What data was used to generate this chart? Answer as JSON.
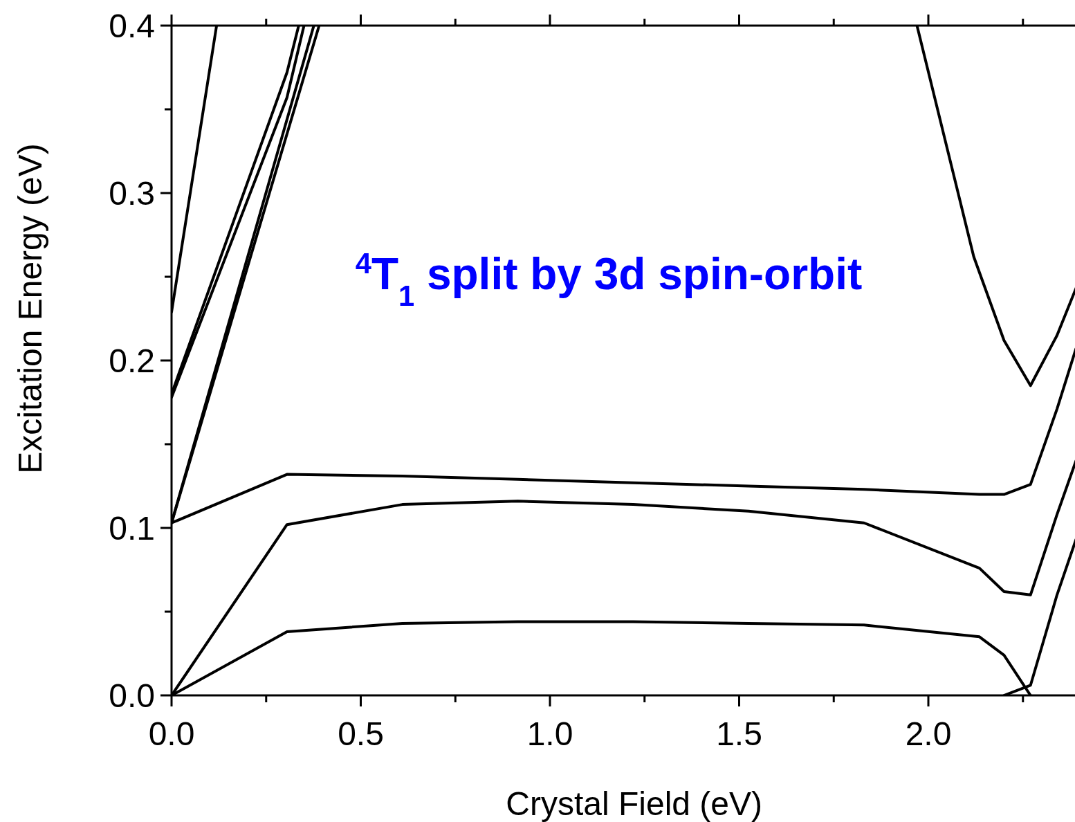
{
  "chart_data": {
    "type": "line",
    "xlabel": "Crystal Field (eV)",
    "ylabel": "Excitation Energy (eV)",
    "annotations": [
      "$^{4}$T$_{1}$ split by 3d spin-orbit"
    ],
    "xlim": [
      0,
      2.39
    ],
    "ylim": [
      0,
      0.4
    ],
    "xticks": [
      {
        "value": 0,
        "label": "0.0"
      },
      {
        "value": 0.25,
        "label": null
      },
      {
        "value": 0.5,
        "label": "0.5"
      },
      {
        "value": 0.75,
        "label": null
      },
      {
        "value": 1,
        "label": "1.0"
      },
      {
        "value": 1.25,
        "label": null
      },
      {
        "value": 1.5,
        "label": "1.5"
      },
      {
        "value": 1.75,
        "label": null
      },
      {
        "value": 2,
        "label": "2.0"
      },
      {
        "value": 2.25,
        "label": null
      }
    ],
    "yticks": [
      {
        "value": 0,
        "label": "0.0"
      },
      {
        "value": 0.05,
        "label": null
      },
      {
        "value": 0.1,
        "label": "0.1"
      },
      {
        "value": 0.15,
        "label": null
      },
      {
        "value": 0.2,
        "label": "0.2"
      },
      {
        "value": 0.25,
        "label": null
      },
      {
        "value": 0.3,
        "label": "0.3"
      },
      {
        "value": 0.35,
        "label": null
      },
      {
        "value": 0.4,
        "label": "0.4"
      }
    ],
    "grid": false,
    "line_style": "solid",
    "series": [
      {
        "color": "#000000",
        "x": [
          0,
          0.305,
          0.61,
          0.915,
          1.22,
          1.525,
          1.83,
          2.135,
          2.2,
          2.27
        ],
        "values": [
          0,
          0.038,
          0.043,
          0.044,
          0.044,
          0.043,
          0.042,
          0.035,
          0.024,
          0
        ]
      },
      {
        "color": "#000000",
        "x": [
          0,
          0.305,
          0.61,
          0.915,
          1.22,
          1.525,
          1.83,
          2.135,
          2.2,
          2.27,
          2.34,
          2.39
        ],
        "values": [
          0,
          0.102,
          0.114,
          0.116,
          0.114,
          0.11,
          0.103,
          0.076,
          0.062,
          0.06,
          0.108,
          0.14
        ]
      },
      {
        "color": "#000000",
        "x": [
          0,
          0.305,
          0.61,
          0.915,
          1.22,
          1.525,
          1.83,
          2.135,
          2.2,
          2.27,
          2.34,
          2.39
        ],
        "values": [
          0.103,
          0.132,
          0.131,
          0.129,
          0.127,
          0.125,
          0.123,
          0.12,
          0.12,
          0.126,
          0.171,
          0.207
        ]
      },
      {
        "color": "#000000",
        "x": [
          2.2,
          2.27,
          2.34,
          2.39
        ],
        "values": [
          0,
          0.006,
          0.06,
          0.093
        ]
      },
      {
        "color": "#000000",
        "x": [
          1.97,
          2.12,
          2.2,
          2.27,
          2.34,
          2.39
        ],
        "values": [
          0.4,
          0.262,
          0.212,
          0.185,
          0.215,
          0.243
        ]
      },
      {
        "color": "#000000",
        "x": [
          0,
          0.119
        ],
        "values": [
          0.229,
          0.4
        ]
      },
      {
        "color": "#000000",
        "x": [
          0,
          0.305,
          0.336
        ],
        "values": [
          0.18,
          0.372,
          0.4
        ]
      },
      {
        "color": "#000000",
        "x": [
          0,
          0.305,
          0.35
        ],
        "values": [
          0.178,
          0.357,
          0.4
        ]
      },
      {
        "color": "#000000",
        "x": [
          0,
          0.376
        ],
        "values": [
          0.103,
          0.4
        ]
      },
      {
        "color": "#000000",
        "x": [
          0,
          0.39
        ],
        "values": [
          0.103,
          0.4
        ]
      }
    ]
  }
}
